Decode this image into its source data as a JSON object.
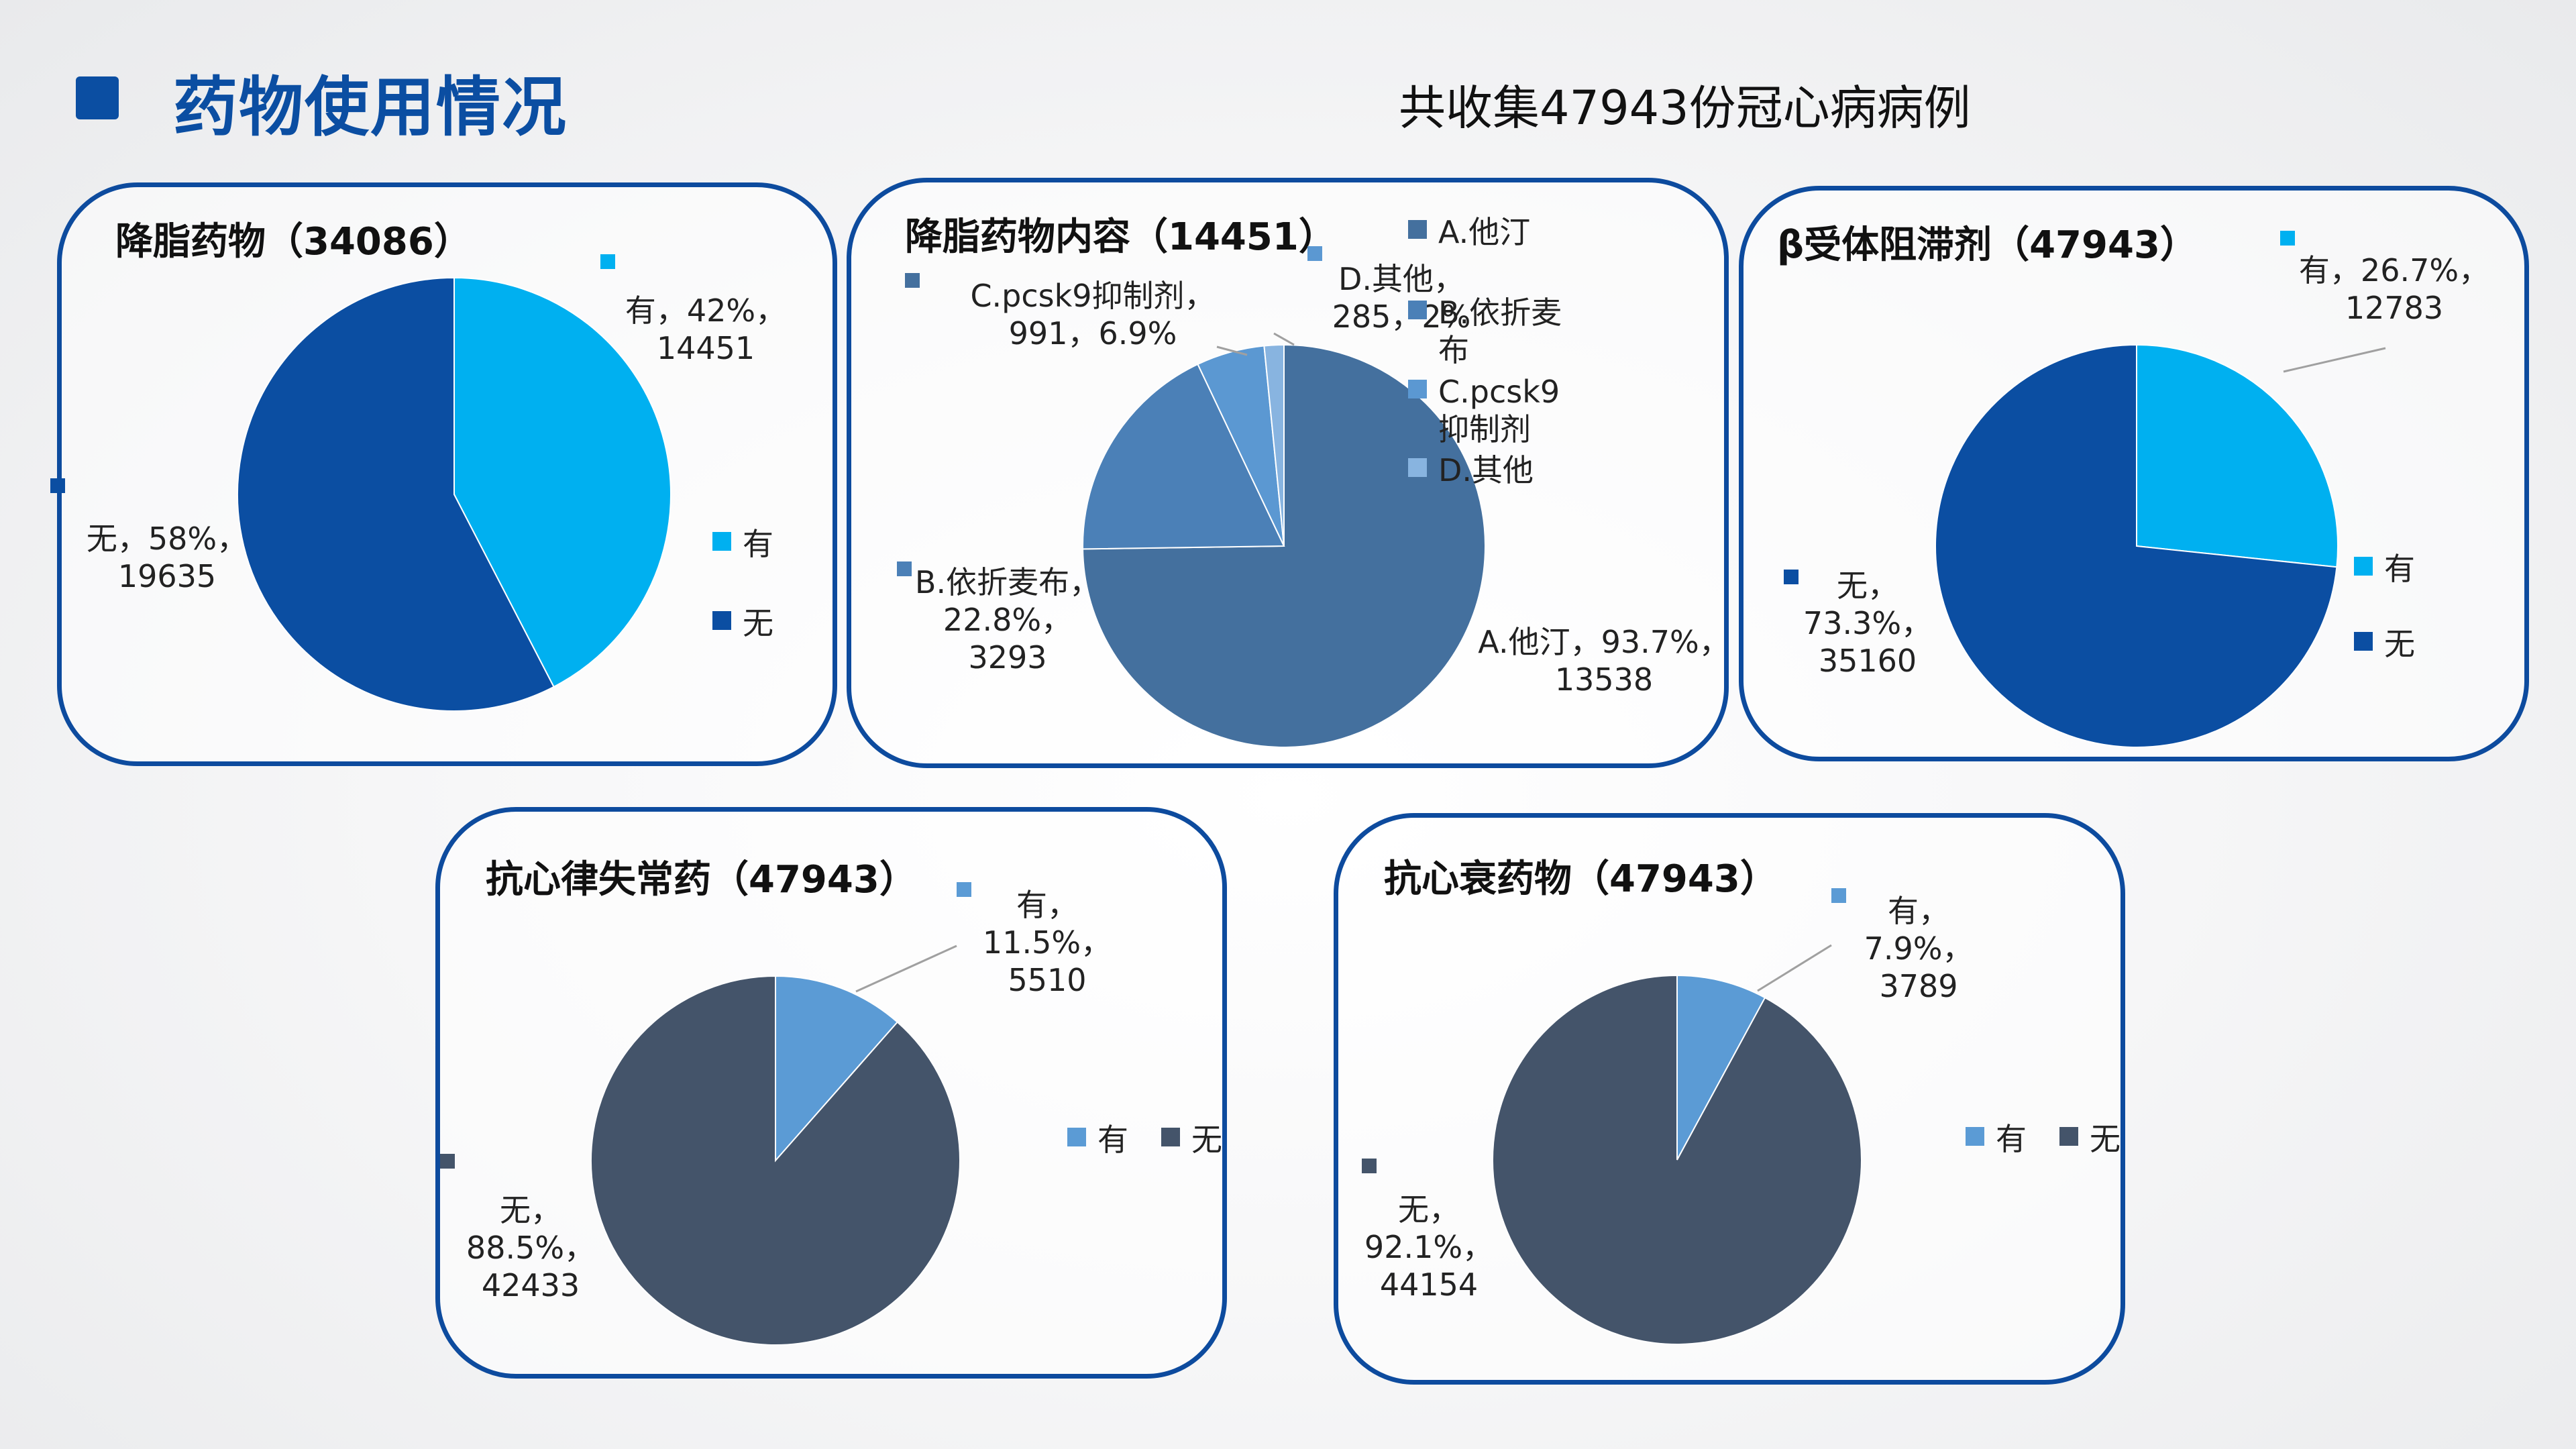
{
  "page": {
    "title": "药物使用情况",
    "subtitle": "共收集47943份冠心病病例"
  },
  "chart_data": [
    {
      "type": "pie",
      "title": "降脂药物（34086）",
      "categories": [
        "有",
        "无"
      ],
      "values": [
        14451,
        19635
      ],
      "percents": [
        "42%",
        "58%"
      ],
      "labels": [
        "有，42%，|14451",
        "无，58%，|19635"
      ],
      "legend": [
        "有",
        "无"
      ],
      "colors": [
        "#00b0f0",
        "#0b4ea2"
      ]
    },
    {
      "type": "pie",
      "title": "降脂药物内容（14451）",
      "categories": [
        "A.他汀",
        "B.依折麦布",
        "C.pcsk9抑制剂",
        "D.其他"
      ],
      "values": [
        13538,
        3293,
        991,
        285
      ],
      "percents": [
        "93.7%",
        "22.8%",
        "6.9%",
        "2%"
      ],
      "labels": [
        "A.他汀，93.7%，|13538",
        "B.依折麦布，|22.8%，|3293",
        "C.pcsk9抑制剂，|991，6.9%",
        "D.其他，|285，2%"
      ],
      "legend": [
        "A.他汀",
        "B.依折麦|布",
        "C.pcsk9|抑制剂",
        "D.其他"
      ],
      "colors": [
        "#44709e",
        "#4b80b7",
        "#5b98d2",
        "#88b4e0"
      ]
    },
    {
      "type": "pie",
      "title": "β受体阻滞剂（47943）",
      "categories": [
        "有",
        "无"
      ],
      "values": [
        12783,
        35160
      ],
      "percents": [
        "26.7%",
        "73.3%"
      ],
      "labels": [
        "有，26.7%，|12783",
        "无，|73.3%，|35160"
      ],
      "legend": [
        "有",
        "无"
      ],
      "colors": [
        "#00b0f0",
        "#0b4ea2"
      ]
    },
    {
      "type": "pie",
      "title": "抗心律失常药（47943）",
      "categories": [
        "有",
        "无"
      ],
      "values": [
        5510,
        42433
      ],
      "percents": [
        "11.5%",
        "88.5%"
      ],
      "labels": [
        "有，|11.5%，|5510",
        "无，|88.5%，|42433"
      ],
      "legend": [
        "有",
        "无"
      ],
      "colors": [
        "#5b9bd5",
        "#44546a"
      ]
    },
    {
      "type": "pie",
      "title": "抗心衰药物（47943）",
      "categories": [
        "有",
        "无"
      ],
      "values": [
        3789,
        44154
      ],
      "percents": [
        "7.9%",
        "92.1%"
      ],
      "labels": [
        "有，|7.9%，|3789",
        "无，|92.1%，|44154"
      ],
      "legend": [
        "有",
        "无"
      ],
      "colors": [
        "#5b9bd5",
        "#44546a"
      ]
    }
  ]
}
